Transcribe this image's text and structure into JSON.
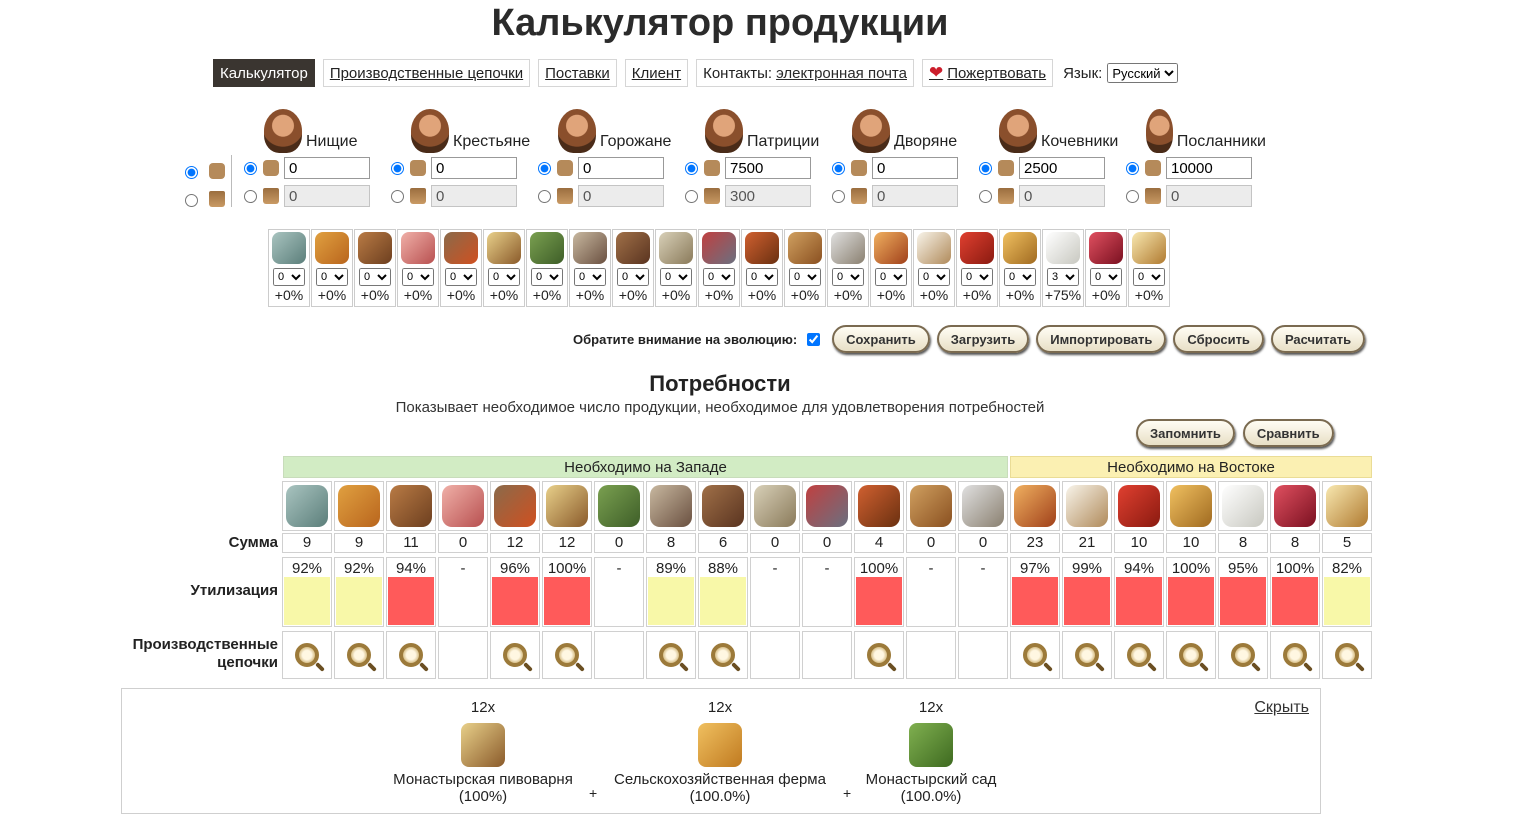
{
  "title": "Калькулятор продукции",
  "nav": {
    "calculator": "Калькулятор",
    "chains": "Производственные цепочки",
    "deliveries": "Поставки",
    "client": "Клиент",
    "contacts_label": "Контакты:",
    "contacts_link": "электронная почта",
    "donate": "Пожертвовать",
    "language_label": "Язык:",
    "language_value": "Русский"
  },
  "population": [
    {
      "name": "Нищие",
      "value": "0",
      "houses": "0"
    },
    {
      "name": "Крестьяне",
      "value": "0",
      "houses": "0"
    },
    {
      "name": "Горожане",
      "value": "0",
      "houses": "0"
    },
    {
      "name": "Патриции",
      "value": "7500",
      "houses": "300"
    },
    {
      "name": "Дворяне",
      "value": "0",
      "houses": "0"
    },
    {
      "name": "Кочевники",
      "value": "2500",
      "houses": "0"
    },
    {
      "name": "Посланники",
      "value": "10000",
      "houses": "0"
    }
  ],
  "goods_bonus": [
    {
      "icon": "fish-icon",
      "color": "g-fish",
      "level": "0",
      "pct": "+0%"
    },
    {
      "icon": "spices-icon",
      "color": "g-spice",
      "level": "0",
      "pct": "+0%"
    },
    {
      "icon": "bread-icon",
      "color": "g-bread",
      "level": "0",
      "pct": "+0%"
    },
    {
      "icon": "meat-icon",
      "color": "g-meat",
      "level": "0",
      "pct": "+0%"
    },
    {
      "icon": "cider-icon",
      "color": "g-cider",
      "level": "0",
      "pct": "+0%"
    },
    {
      "icon": "beer-icon",
      "color": "g-beer",
      "level": "0",
      "pct": "+0%"
    },
    {
      "icon": "wine-icon",
      "color": "g-wine",
      "level": "0",
      "pct": "+0%"
    },
    {
      "icon": "linen-icon",
      "color": "g-linen",
      "level": "0",
      "pct": "+0%"
    },
    {
      "icon": "leather-icon",
      "color": "g-leather",
      "level": "0",
      "pct": "+0%"
    },
    {
      "icon": "fur-icon",
      "color": "g-fur",
      "level": "0",
      "pct": "+0%"
    },
    {
      "icon": "brocade-icon",
      "color": "g-brocade",
      "level": "0",
      "pct": "+0%"
    },
    {
      "icon": "book-icon",
      "color": "g-book",
      "level": "0",
      "pct": "+0%"
    },
    {
      "icon": "candlestick-icon",
      "color": "g-candle",
      "level": "0",
      "pct": "+0%"
    },
    {
      "icon": "glasses-icon",
      "color": "g-glasses",
      "level": "0",
      "pct": "+0%"
    },
    {
      "icon": "dates-icon",
      "color": "g-dates",
      "level": "0",
      "pct": "+0%"
    },
    {
      "icon": "milk-icon",
      "color": "g-milk",
      "level": "0",
      "pct": "+0%"
    },
    {
      "icon": "carpet-icon",
      "color": "g-carpet",
      "level": "0",
      "pct": "+0%"
    },
    {
      "icon": "coffee-icon",
      "color": "g-coffee",
      "level": "0",
      "pct": "+0%"
    },
    {
      "icon": "pearls-icon",
      "color": "g-pearls",
      "level": "3",
      "pct": "+75%"
    },
    {
      "icon": "perfume-icon",
      "color": "g-perfume",
      "level": "0",
      "pct": "+0%"
    },
    {
      "icon": "marzipan-icon",
      "color": "g-marzipan",
      "level": "0",
      "pct": "+0%"
    }
  ],
  "actions": {
    "evolution_label": "Обратите внимание на эволюцию:",
    "save": "Сохранить",
    "load": "Загрузить",
    "import": "Импортировать",
    "reset": "Сбросить",
    "calculate": "Расчитать"
  },
  "needs": {
    "title": "Потребности",
    "subtitle": "Показывает необходимое число продукции, необходимое для удовлетворения потребностей",
    "remember": "Запомнить",
    "compare": "Сравнить",
    "west_label": "Необходимо на Западе",
    "east_label": "Необходимо на Востоке",
    "row_sum": "Сумма",
    "row_util": "Утилизация",
    "row_chains": "Производственные цепочки",
    "colors": {
      "red": "#ff5a5a",
      "yellow": "#f8f8a8"
    },
    "items": [
      {
        "icon": "fish-icon",
        "color": "g-fish",
        "sum": "9",
        "util": "92%",
        "fill": "yellow",
        "chain": true
      },
      {
        "icon": "spices-icon",
        "color": "g-spice",
        "sum": "9",
        "util": "92%",
        "fill": "yellow",
        "chain": true
      },
      {
        "icon": "bread-icon",
        "color": "g-bread",
        "sum": "11",
        "util": "94%",
        "fill": "red",
        "chain": true
      },
      {
        "icon": "meat-icon",
        "color": "g-meat",
        "sum": "0",
        "util": "-",
        "fill": "",
        "chain": false
      },
      {
        "icon": "cider-icon",
        "color": "g-cider",
        "sum": "12",
        "util": "96%",
        "fill": "red",
        "chain": true
      },
      {
        "icon": "beer-icon",
        "color": "g-beer",
        "sum": "12",
        "util": "100%",
        "fill": "red",
        "chain": true
      },
      {
        "icon": "wine-icon",
        "color": "g-wine",
        "sum": "0",
        "util": "-",
        "fill": "",
        "chain": false
      },
      {
        "icon": "linen-icon",
        "color": "g-linen",
        "sum": "8",
        "util": "89%",
        "fill": "yellow",
        "chain": true
      },
      {
        "icon": "leather-icon",
        "color": "g-leather",
        "sum": "6",
        "util": "88%",
        "fill": "yellow",
        "chain": true
      },
      {
        "icon": "fur-icon",
        "color": "g-fur",
        "sum": "0",
        "util": "-",
        "fill": "",
        "chain": false
      },
      {
        "icon": "brocade-icon",
        "color": "g-brocade",
        "sum": "0",
        "util": "-",
        "fill": "",
        "chain": false
      },
      {
        "icon": "book-icon",
        "color": "g-book",
        "sum": "4",
        "util": "100%",
        "fill": "red",
        "chain": true
      },
      {
        "icon": "candlestick-icon",
        "color": "g-candle",
        "sum": "0",
        "util": "-",
        "fill": "",
        "chain": false
      },
      {
        "icon": "glasses-icon",
        "color": "g-glasses",
        "sum": "0",
        "util": "-",
        "fill": "",
        "chain": false
      },
      {
        "icon": "dates-icon",
        "color": "g-dates",
        "sum": "23",
        "util": "97%",
        "fill": "red",
        "chain": true
      },
      {
        "icon": "milk-icon",
        "color": "g-milk",
        "sum": "21",
        "util": "99%",
        "fill": "red",
        "chain": true
      },
      {
        "icon": "carpet-icon",
        "color": "g-carpet",
        "sum": "10",
        "util": "94%",
        "fill": "red",
        "chain": true
      },
      {
        "icon": "coffee-icon",
        "color": "g-coffee",
        "sum": "10",
        "util": "100%",
        "fill": "red",
        "chain": true
      },
      {
        "icon": "pearls-icon",
        "color": "g-pearls",
        "sum": "8",
        "util": "95%",
        "fill": "red",
        "chain": true
      },
      {
        "icon": "perfume-icon",
        "color": "g-perfume",
        "sum": "8",
        "util": "100%",
        "fill": "red",
        "chain": true
      },
      {
        "icon": "marzipan-icon",
        "color": "g-marzipan",
        "sum": "5",
        "util": "82%",
        "fill": "yellow",
        "chain": true
      }
    ]
  },
  "chain_panel": {
    "hide": "Скрыть",
    "nodes": [
      {
        "mult": "12x",
        "icon": "beer-mug-icon",
        "color": "g-beer",
        "name": "Монастырская пивоварня",
        "pct": "(100%)"
      },
      {
        "mult": "12x",
        "icon": "wheat-icon",
        "color": "g-wheat",
        "name": "Сельскохозяйственная ферма",
        "pct": "(100.0%)"
      },
      {
        "mult": "12x",
        "icon": "herbs-icon",
        "color": "g-herbs",
        "name": "Монастырский сад",
        "pct": "(100.0%)"
      }
    ],
    "plus": "+"
  }
}
